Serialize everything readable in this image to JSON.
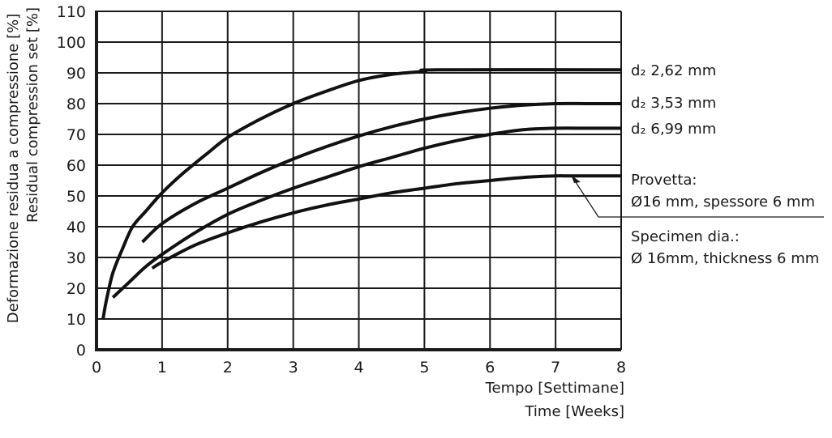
{
  "chart_data": {
    "type": "line",
    "ylabel_it": "Deformazione residua a compressione [%]",
    "ylabel_en": "Residual compression set [%]",
    "xlabel_it": "Tempo [Settimane]",
    "xlabel_en": "Time [Weeks]",
    "xlim": [
      0,
      8
    ],
    "ylim": [
      0,
      110
    ],
    "x_ticks": [
      "0",
      "1",
      "2",
      "3",
      "4",
      "5",
      "6",
      "7",
      "8"
    ],
    "y_ticks": [
      "0",
      "10",
      "20",
      "30",
      "40",
      "50",
      "60",
      "70",
      "80",
      "90",
      "100",
      "110"
    ],
    "grid": true,
    "series": [
      {
        "name": "d₂ 2,62 mm",
        "x": [
          0.1,
          0.15,
          0.25,
          0.4,
          0.55,
          0.75,
          1,
          1.3,
          1.7,
          2,
          2.5,
          3,
          3.5,
          4,
          4.5,
          5,
          5.2,
          8
        ],
        "y": [
          10,
          16,
          25,
          33,
          40,
          45,
          51,
          57,
          64,
          69,
          75,
          80,
          84,
          87.5,
          89.5,
          90.5,
          91,
          91
        ]
      },
      {
        "name": "d₂ 3,53 mm",
        "x": [
          0.7,
          1,
          1.5,
          2,
          2.5,
          3,
          3.5,
          4,
          4.5,
          5,
          5.5,
          6,
          6.5,
          7,
          7.5,
          8
        ],
        "y": [
          35,
          41,
          47.5,
          52.5,
          57.5,
          62,
          66,
          69.5,
          72.5,
          75,
          77,
          78.5,
          79.5,
          80,
          80,
          80
        ]
      },
      {
        "name": "d₂ 6,99 mm",
        "x": [
          0.25,
          0.5,
          0.75,
          1,
          1.5,
          2,
          2.5,
          3,
          3.5,
          4,
          4.5,
          5,
          5.5,
          6,
          6.5,
          7,
          7.5,
          8
        ],
        "y": [
          17,
          22,
          27,
          31,
          38,
          44,
          48.5,
          52.5,
          56,
          59.5,
          62.5,
          65.5,
          68,
          70,
          71.5,
          72,
          72,
          72
        ]
      },
      {
        "name": "",
        "x": [
          0.85,
          1,
          1.5,
          2,
          2.5,
          3,
          3.5,
          4,
          4.5,
          5,
          5.5,
          6,
          6.5,
          7,
          7.25,
          8
        ],
        "y": [
          26.5,
          28.5,
          34,
          38,
          41.5,
          44.5,
          47,
          49,
          51,
          52.5,
          54,
          55,
          56,
          56.5,
          56.5,
          56.5
        ]
      }
    ],
    "annotation_it": [
      "Provetta:",
      "Ø16 mm, spessore 6 mm"
    ],
    "annotation_en": [
      "Specimen dia.:",
      "Ø 16mm, thickness 6 mm"
    ]
  }
}
